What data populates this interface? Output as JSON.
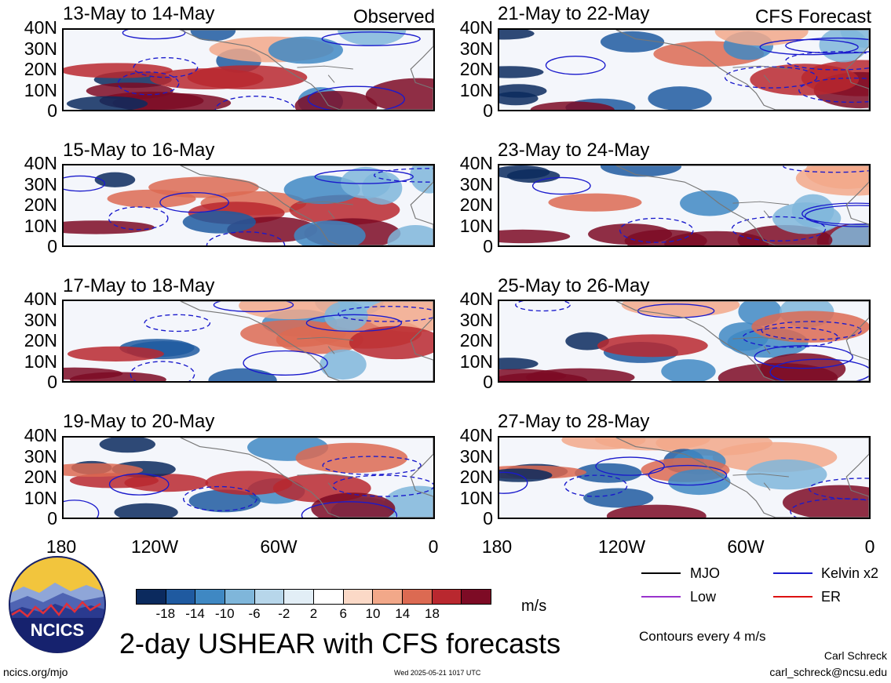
{
  "panels": [
    {
      "title": "13-May to 14-May",
      "tag": "Observed"
    },
    {
      "title": "21-May to 22-May",
      "tag": "CFS Forecast"
    },
    {
      "title": "15-May to 16-May",
      "tag": ""
    },
    {
      "title": "23-May to 24-May",
      "tag": ""
    },
    {
      "title": "17-May to 18-May",
      "tag": ""
    },
    {
      "title": "25-May to 26-May",
      "tag": ""
    },
    {
      "title": "19-May to 20-May",
      "tag": ""
    },
    {
      "title": "27-May to 28-May",
      "tag": ""
    }
  ],
  "lat_labels": [
    "40N",
    "30N",
    "20N",
    "10N",
    "0"
  ],
  "lon_labels": [
    "180",
    "120W",
    "60W",
    "0"
  ],
  "colorbar": {
    "ticks": [
      "-18",
      "-14",
      "-10",
      "-6",
      "-2",
      "2",
      "6",
      "10",
      "14",
      "18"
    ],
    "unit": "m/s",
    "colors": [
      "#0b2a5e",
      "#1f5aa0",
      "#3f88c3",
      "#7fb6da",
      "#b7d6ea",
      "#e2eef6",
      "#ffffff",
      "#fbd9c7",
      "#f2a889",
      "#dc6a52",
      "#b9282f",
      "#7d0b25"
    ]
  },
  "legend": [
    {
      "label": "MJO",
      "color": "#000000"
    },
    {
      "label": "Kelvin x2",
      "color": "#1a1acc"
    },
    {
      "label": "Low",
      "color": "#9933cc"
    },
    {
      "label": "ER",
      "color": "#dd1111"
    }
  ],
  "contour_note": "Contours every 4 m/s",
  "main_title": "2-day USHEAR with CFS forecasts",
  "logo_text": "NCICS",
  "footer": {
    "url": "ncics.org/mjo",
    "timestamp": "Wed 2025-05-21 1017 UTC",
    "author": "Carl Schreck",
    "email": "carl_schreck@ncsu.edu"
  }
}
